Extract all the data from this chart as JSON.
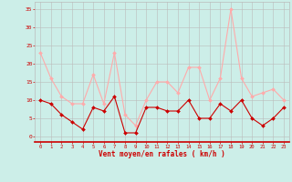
{
  "hours": [
    0,
    1,
    2,
    3,
    4,
    5,
    6,
    7,
    8,
    9,
    10,
    11,
    12,
    13,
    14,
    15,
    16,
    17,
    18,
    19,
    20,
    21,
    22,
    23
  ],
  "wind_avg": [
    10,
    9,
    6,
    4,
    2,
    8,
    7,
    11,
    1,
    1,
    8,
    8,
    7,
    7,
    10,
    5,
    5,
    9,
    7,
    10,
    5,
    3,
    5,
    8
  ],
  "wind_gust": [
    23,
    16,
    11,
    9,
    9,
    17,
    9,
    23,
    6,
    3,
    10,
    15,
    15,
    12,
    19,
    19,
    10,
    16,
    35,
    16,
    11,
    12,
    13,
    10
  ],
  "color_avg": "#cc0000",
  "color_gust": "#ffaaaa",
  "bg_color": "#cceee8",
  "grid_color": "#bbbbbb",
  "xlabel": "Vent moyen/en rafales ( km/h )",
  "yticks": [
    0,
    5,
    10,
    15,
    20,
    25,
    30,
    35
  ],
  "ylim": [
    -1.5,
    37
  ],
  "xlim": [
    -0.5,
    23.5
  ],
  "xlabel_color": "#cc0000",
  "tick_color": "#cc0000",
  "markersize": 2.0,
  "linewidth": 0.8
}
